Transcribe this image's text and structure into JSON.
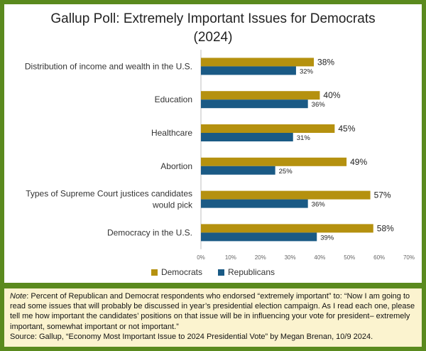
{
  "chart_data": {
    "type": "bar",
    "orientation": "horizontal",
    "title": "Gallup Poll: Extremely Important Issues for Democrats",
    "subtitle": "(2024)",
    "categories": [
      "Distribution of income and wealth in the U.S.",
      "Education",
      "Healthcare",
      "Abortion",
      "Types of Supreme Court justices candidates would pick",
      "Democracy in the U.S."
    ],
    "category_lines": [
      [
        "Distribution of income and wealth in the U.S."
      ],
      [
        "Education"
      ],
      [
        "Healthcare"
      ],
      [
        "Abortion"
      ],
      [
        "Types of Supreme Court justices candidates",
        "would pick"
      ],
      [
        "Democracy in the U.S."
      ]
    ],
    "series": [
      {
        "name": "Democrats",
        "color": "#b5910f",
        "values": [
          38,
          40,
          45,
          49,
          57,
          58
        ]
      },
      {
        "name": "Republicans",
        "color": "#1a5a85",
        "values": [
          32,
          36,
          31,
          25,
          36,
          39
        ]
      }
    ],
    "value_suffix": "%",
    "xlim": [
      0,
      70
    ],
    "xticks": [
      "0%",
      "10%",
      "20%",
      "30%",
      "40%",
      "50%",
      "60%",
      "70%"
    ],
    "grid": false,
    "legend": "bottom"
  },
  "note": {
    "label": "Note",
    "text": ": Percent of Republican and Democrat respondents who endorsed “extremely important” to: “Now I am going to read some issues that will probably be discussed in year’s presidential election campaign. As I read each one, please tell me how important the candidates’ positions on that issue will be in influencing your vote for president– extremely important, somewhat important or not important.”",
    "source": "Source: Gallup, “Economy Most Important Issue to 2024 Presidential Vote” by Megan Brenan, 10/9 2024."
  }
}
